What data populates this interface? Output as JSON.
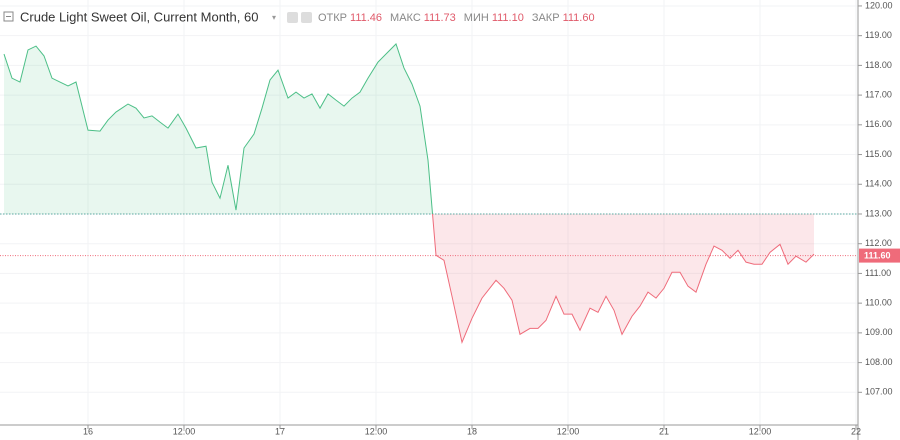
{
  "chart_data": {
    "type": "baseline",
    "title": "Crude Light Sweet Oil, Current Month, 60",
    "ohlc": [
      {
        "name": "ОТКР",
        "value": "111.46"
      },
      {
        "name": "МАКС",
        "value": "111.73"
      },
      {
        "name": "МИН",
        "value": "111.10"
      },
      {
        "name": "ЗАКР",
        "value": "111.60"
      }
    ],
    "x": [
      -10.5,
      -9.5,
      -8.5,
      -7.5,
      -6.5,
      -5.5,
      -4.5,
      -3.5,
      -2.5,
      -1.5,
      0,
      1.5,
      2.5,
      3.5,
      5,
      6,
      7,
      8,
      9,
      10,
      11.25,
      12.25,
      13.5,
      14.75,
      15.5,
      16.5,
      17.5,
      18.5,
      19.5,
      20.75,
      21.75,
      22.75,
      23.75,
      25,
      26,
      27,
      28,
      29,
      30,
      31,
      32,
      33,
      34,
      35,
      36.25,
      37.5,
      38.5,
      39.5,
      40.5,
      41.5,
      42.5,
      43.5,
      44.5,
      45.5,
      46.75,
      48,
      49.25,
      51,
      52,
      53,
      54,
      55.25,
      56.25,
      57.25,
      58.5,
      59.5,
      60.5,
      61.5,
      62.75,
      63.75,
      64.75,
      65.75,
      66.75,
      68,
      69,
      70,
      71,
      72,
      73,
      74,
      75,
      76,
      77.25,
      78.25,
      79.25,
      80.25,
      81.25,
      82.25,
      83.25,
      84.25,
      85.25,
      86.5,
      87.5,
      88.5,
      89.75,
      90.75
    ],
    "values": [
      118.38,
      117.57,
      117.44,
      118.52,
      118.65,
      118.32,
      117.57,
      117.44,
      117.31,
      117.44,
      115.82,
      115.79,
      116.16,
      116.43,
      116.7,
      116.56,
      116.23,
      116.3,
      116.09,
      115.89,
      116.36,
      115.89,
      115.22,
      115.28,
      114.07,
      113.53,
      114.64,
      113.13,
      115.22,
      115.69,
      116.56,
      117.51,
      117.84,
      116.9,
      117.1,
      116.9,
      117.04,
      116.56,
      117.04,
      116.83,
      116.63,
      116.9,
      117.1,
      117.57,
      118.11,
      118.45,
      118.72,
      117.91,
      117.37,
      116.63,
      114.81,
      111.61,
      111.44,
      110.23,
      108.68,
      109.49,
      110.17,
      110.77,
      110.5,
      110.1,
      108.95,
      109.15,
      109.15,
      109.42,
      110.23,
      109.63,
      109.63,
      109.09,
      109.83,
      109.69,
      110.23,
      109.76,
      108.95,
      109.56,
      109.9,
      110.37,
      110.17,
      110.5,
      111.04,
      111.04,
      110.57,
      110.37,
      111.31,
      111.92,
      111.78,
      111.51,
      111.78,
      111.38,
      111.31,
      111.31,
      111.71,
      111.98,
      111.31,
      111.58,
      111.38,
      111.65
    ],
    "baseline": 113,
    "last_price": {
      "value": 111.6,
      "label": "111.60"
    },
    "up_color": "#4cbf87",
    "down_color": "#ef6b7a",
    "xlim": [
      -11,
      96.25
    ],
    "ylim": [
      105.9,
      120.2
    ],
    "xticks": [
      {
        "value": 0,
        "label": "16"
      },
      {
        "value": 12,
        "label": "12:00"
      },
      {
        "value": 24,
        "label": "17"
      },
      {
        "value": 36,
        "label": "12:00"
      },
      {
        "value": 48,
        "label": "18"
      },
      {
        "value": 60,
        "label": "12:00"
      },
      {
        "value": 72,
        "label": "21"
      },
      {
        "value": 84,
        "label": "12:00"
      },
      {
        "value": 96,
        "label": "22"
      }
    ],
    "yticks": [
      {
        "value": 107,
        "label": "107.00"
      },
      {
        "value": 108,
        "label": "108.00"
      },
      {
        "value": 109,
        "label": "109.00"
      },
      {
        "value": 110,
        "label": "110.00"
      },
      {
        "value": 111,
        "label": "111.00"
      },
      {
        "value": 112,
        "label": "112.00"
      },
      {
        "value": 113,
        "label": "113.00"
      },
      {
        "value": 114,
        "label": "114.00"
      },
      {
        "value": 115,
        "label": "115.00"
      },
      {
        "value": 116,
        "label": "116.00"
      },
      {
        "value": 117,
        "label": "117.00"
      },
      {
        "value": 118,
        "label": "118.00"
      },
      {
        "value": 119,
        "label": "119.00"
      },
      {
        "value": 120,
        "label": "120.00"
      }
    ],
    "grid": true
  }
}
